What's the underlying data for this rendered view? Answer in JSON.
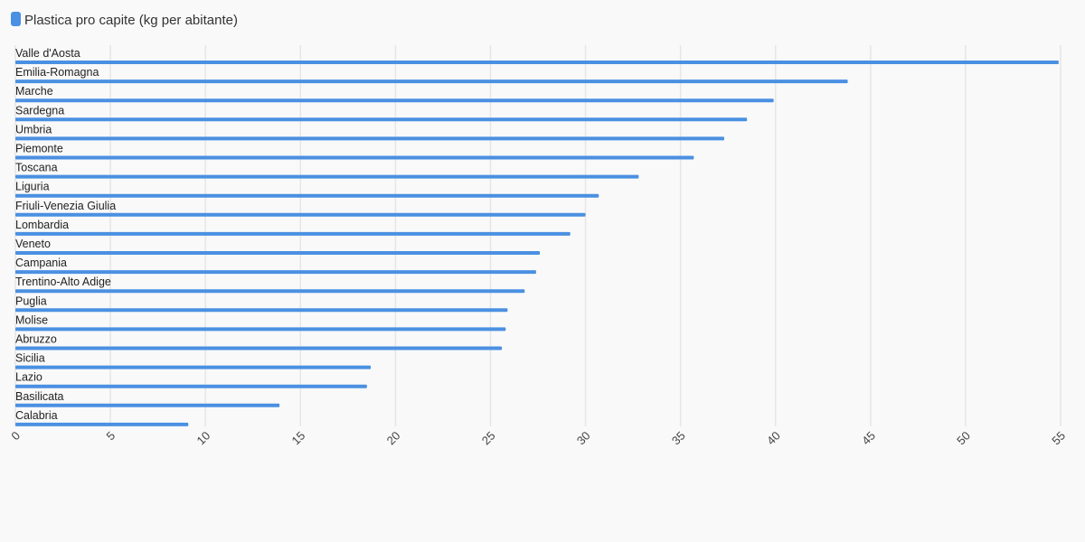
{
  "chart_data": {
    "type": "bar",
    "orientation": "horizontal",
    "legend": {
      "position": "top-left",
      "entries": [
        "Plastica pro capite (kg per abitante)"
      ]
    },
    "series": [
      {
        "name": "Plastica pro capite (kg per abitante)",
        "color": "#4a90e2",
        "values": [
          54.9,
          43.8,
          39.9,
          38.5,
          37.3,
          35.7,
          32.8,
          30.7,
          30.0,
          29.2,
          27.6,
          27.4,
          26.8,
          25.9,
          25.8,
          25.6,
          18.7,
          18.5,
          13.9,
          9.1
        ]
      }
    ],
    "categories": [
      "Valle d'Aosta",
      "Emilia-Romagna",
      "Marche",
      "Sardegna",
      "Umbria",
      "Piemonte",
      "Toscana",
      "Liguria",
      "Friuli-Venezia Giulia",
      "Lombardia",
      "Veneto",
      "Campania",
      "Trentino-Alto Adige",
      "Puglia",
      "Molise",
      "Abruzzo",
      "Sicilia",
      "Lazio",
      "Basilicata",
      "Calabria"
    ],
    "x_ticks": [
      "0",
      "5",
      "10",
      "15",
      "20",
      "25",
      "30",
      "35",
      "40",
      "45",
      "50",
      "55"
    ],
    "xlim": [
      0,
      55
    ],
    "grid": true,
    "xlabel": "",
    "ylabel": ""
  }
}
